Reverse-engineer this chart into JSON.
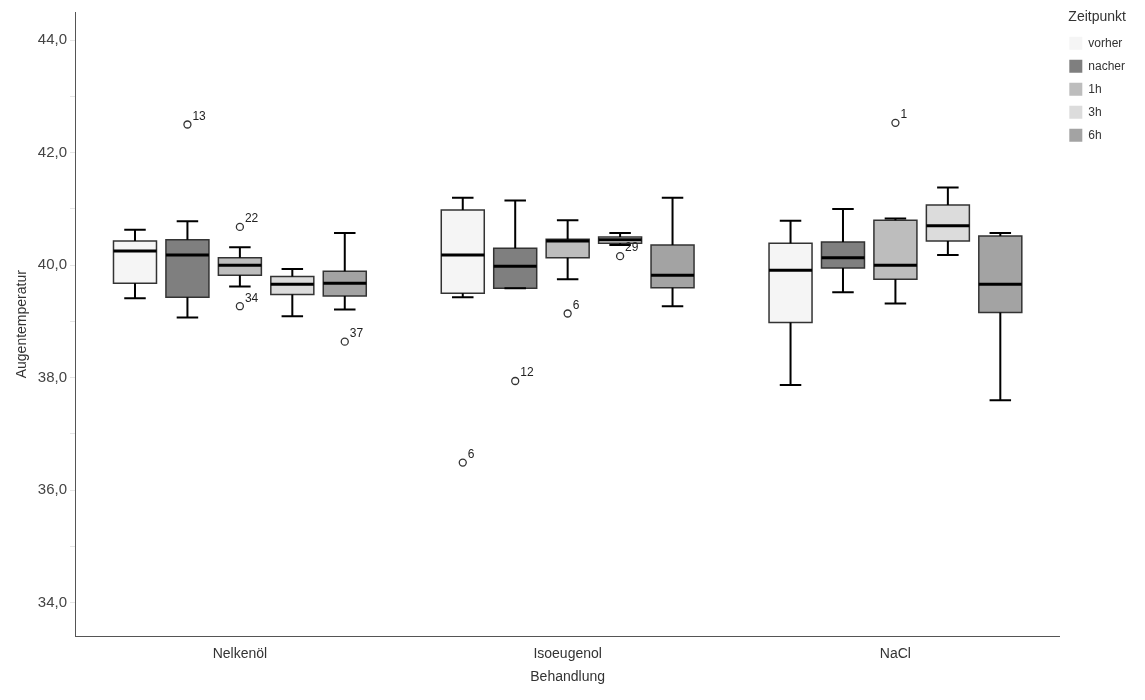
{
  "chart_data": {
    "type": "box",
    "xlabel": "Behandlung",
    "ylabel": "Augentemperatur",
    "legend_title": "Zeitpunkt",
    "legend": "right",
    "grid": false,
    "categories": [
      "Nelkenöl",
      "Isoeugenol",
      "NaCl"
    ],
    "ylim": [
      33.4,
      44.5
    ],
    "yticks": [
      {
        "value": 34,
        "label": "34,0"
      },
      {
        "value": 35,
        "label": null
      },
      {
        "value": 36,
        "label": "36,0"
      },
      {
        "value": 37,
        "label": null
      },
      {
        "value": 38,
        "label": "38,0"
      },
      {
        "value": 39,
        "label": null
      },
      {
        "value": 40,
        "label": "40,0"
      },
      {
        "value": 41,
        "label": null
      },
      {
        "value": 42,
        "label": "42,0"
      },
      {
        "value": 43,
        "label": null
      },
      {
        "value": 44,
        "label": "44,0"
      }
    ],
    "series": [
      {
        "name": "vorher",
        "color": "#f5f5f5",
        "boxes": [
          {
            "low": 39.41,
            "q1": 39.68,
            "median": 40.25,
            "q3": 40.43,
            "high": 40.63
          },
          {
            "low": 39.43,
            "q1": 39.5,
            "median": 40.18,
            "q3": 40.98,
            "high": 41.2,
            "outliers": [
              36.49
            ]
          },
          {
            "low": 37.87,
            "q1": 38.98,
            "median": 39.91,
            "q3": 40.39,
            "high": 40.79
          }
        ]
      },
      {
        "name": "nacher",
        "color": "#7f7f7f",
        "boxes": [
          {
            "low": 39.07,
            "q1": 39.43,
            "median": 40.18,
            "q3": 40.45,
            "high": 40.78,
            "outliers": [
              42.5
            ]
          },
          {
            "low": 39.59,
            "q1": 39.59,
            "median": 39.98,
            "q3": 40.3,
            "high": 41.15,
            "outliers": [
              37.94
            ]
          },
          {
            "low": 39.52,
            "q1": 39.95,
            "median": 40.13,
            "q3": 40.41,
            "high": 41.0
          }
        ]
      },
      {
        "name": "1h",
        "color": "#bdbdbd",
        "boxes": [
          {
            "low": 39.62,
            "q1": 39.82,
            "median": 40.0,
            "q3": 40.13,
            "high": 40.32,
            "outliers": [
              40.68,
              39.27
            ]
          },
          {
            "low": 39.75,
            "q1": 40.13,
            "median": 40.43,
            "q3": 40.46,
            "high": 40.8,
            "outliers": [
              39.14
            ]
          },
          {
            "low": 39.32,
            "q1": 39.75,
            "median": 40.0,
            "q3": 40.8,
            "high": 40.83,
            "outliers": [
              42.53
            ]
          }
        ]
      },
      {
        "name": "3h",
        "color": "#dcdcdc",
        "boxes": [
          {
            "low": 39.09,
            "q1": 39.48,
            "median": 39.66,
            "q3": 39.8,
            "high": 39.93
          },
          {
            "low": 40.36,
            "q1": 40.39,
            "median": 40.45,
            "q3": 40.5,
            "high": 40.57,
            "outliers": [
              40.16
            ]
          },
          {
            "low": 40.18,
            "q1": 40.43,
            "median": 40.7,
            "q3": 41.07,
            "high": 41.38
          }
        ]
      },
      {
        "name": "6h",
        "color": "#a3a3a3",
        "boxes": [
          {
            "low": 39.21,
            "q1": 39.45,
            "median": 39.68,
            "q3": 39.89,
            "high": 40.57,
            "outliers": [
              38.64
            ]
          },
          {
            "low": 39.27,
            "q1": 39.6,
            "median": 39.82,
            "q3": 40.36,
            "high": 41.2
          },
          {
            "low": 37.6,
            "q1": 39.16,
            "median": 39.66,
            "q3": 40.52,
            "high": 40.57
          }
        ]
      }
    ],
    "annotations": [
      "13",
      "22",
      "34",
      "37",
      "6",
      "12",
      "6",
      "29",
      "1"
    ]
  }
}
